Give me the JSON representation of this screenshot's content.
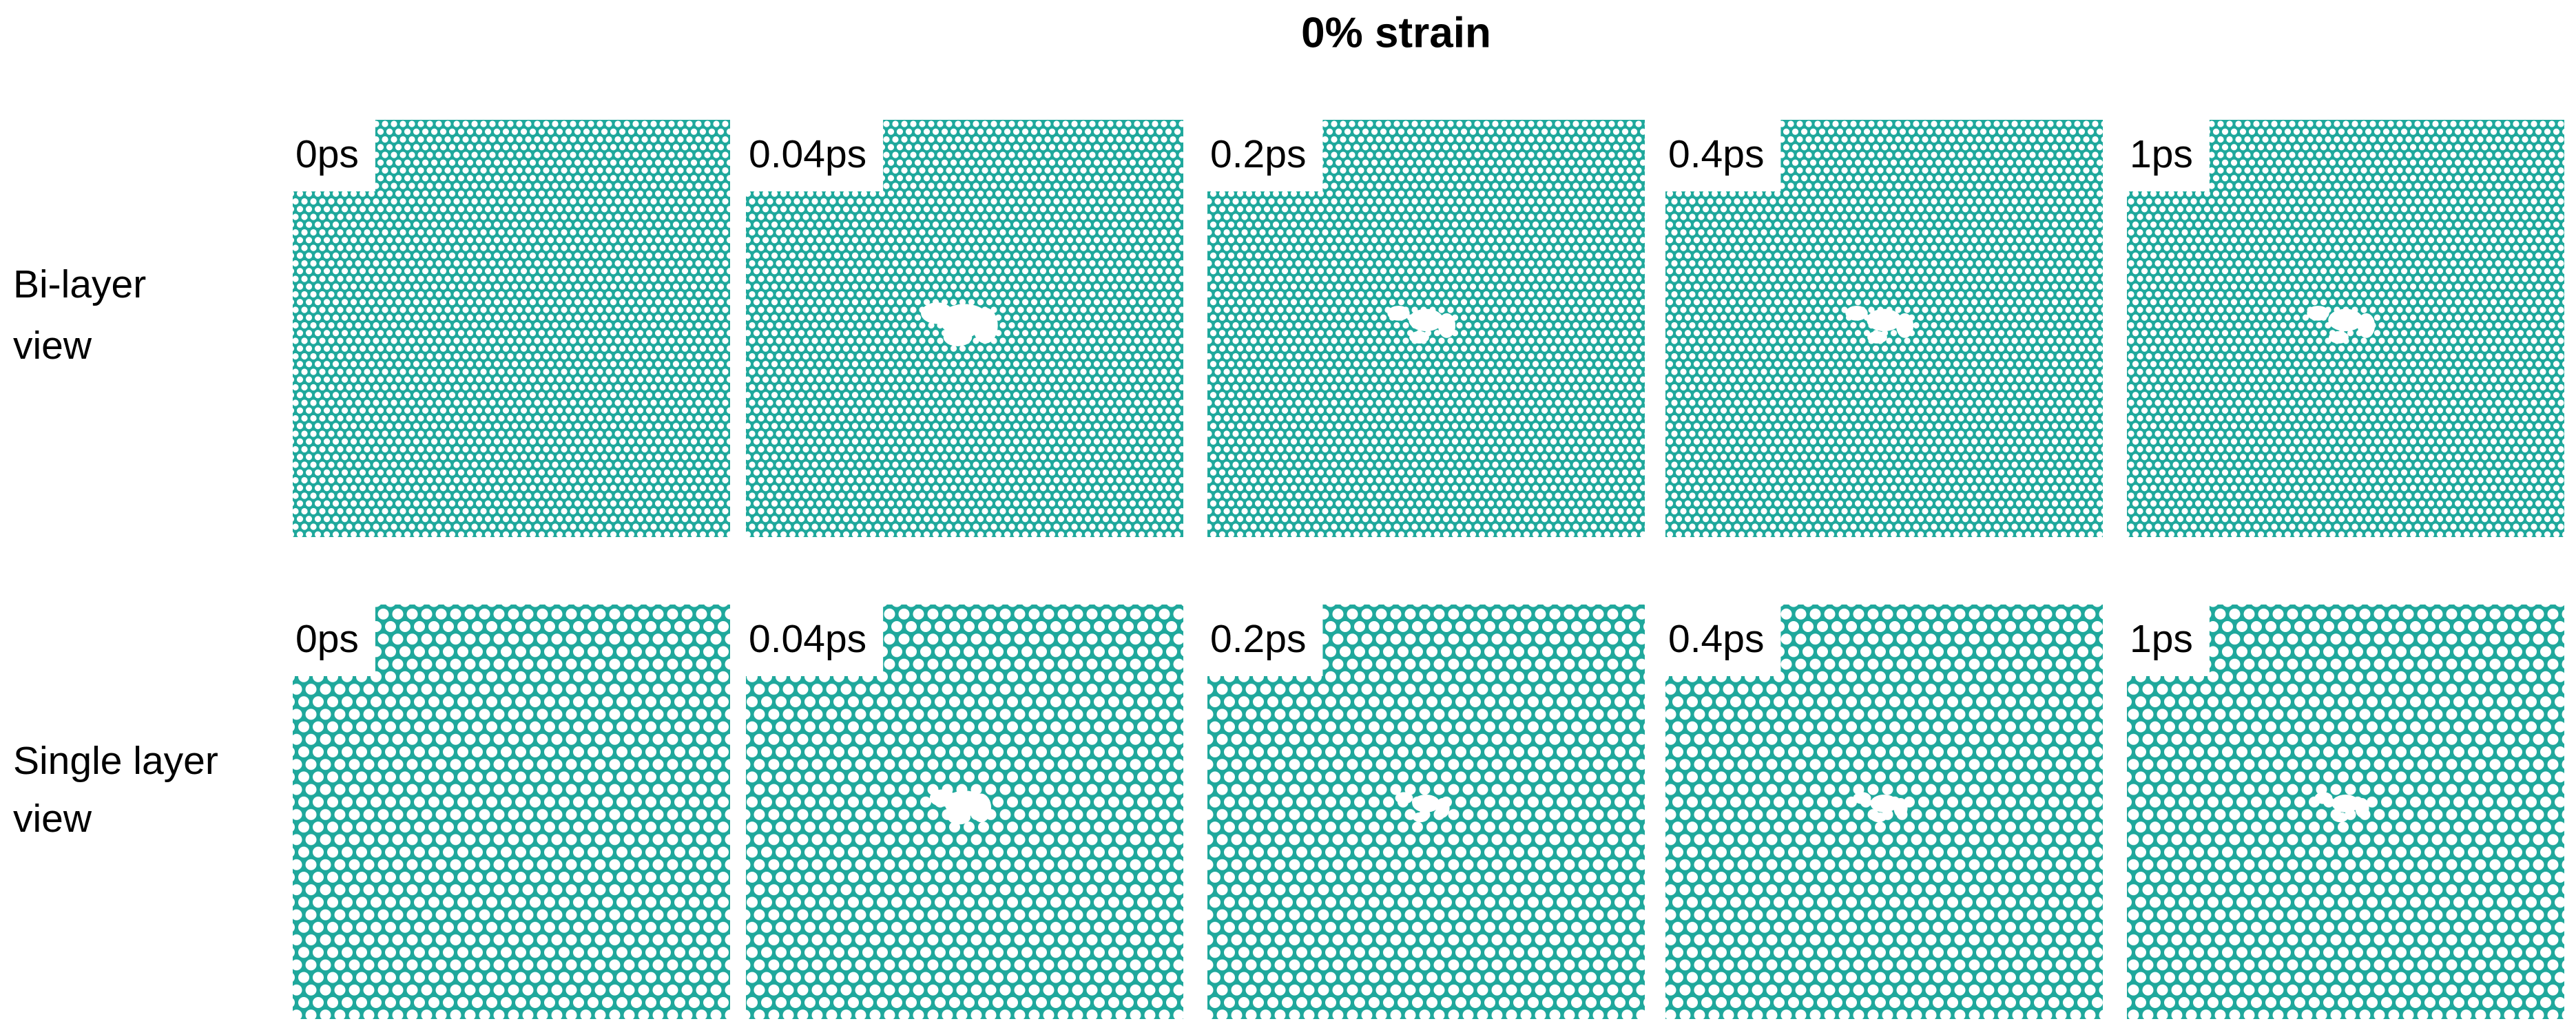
{
  "title": "0% strain",
  "rows": [
    {
      "label_lines": [
        "Bi-layer",
        "view"
      ],
      "panels": [
        "0ps",
        "0.04ps",
        "0.2ps",
        "0.4ps",
        "1ps"
      ]
    },
    {
      "label_lines": [
        "Single layer",
        "view"
      ],
      "panels": [
        "0ps",
        "0.04ps",
        "0.2ps",
        "0.4ps",
        "1ps"
      ]
    }
  ]
}
